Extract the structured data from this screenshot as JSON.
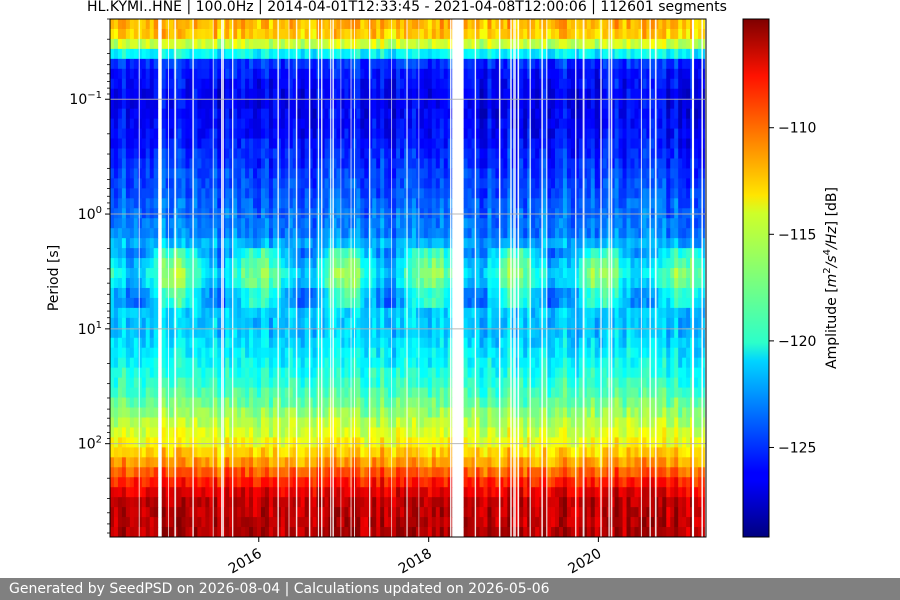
{
  "chart_data": {
    "type": "heatmap",
    "title": "HL.KYMI..HNE | 100.0Hz | 2014-04-01T12:33:45 - 2021-04-08T12:00:06 | 112601 segments",
    "xlabel": "",
    "ylabel": "Period [s]",
    "x_range": [
      "2014-04-01",
      "2021-04-08"
    ],
    "x_ticks": [
      {
        "value": "2016-01-01",
        "label": "2016"
      },
      {
        "value": "2018-01-01",
        "label": "2018"
      },
      {
        "value": "2020-01-01",
        "label": "2020"
      }
    ],
    "y_scale": "log",
    "y_inverted": true,
    "y_range": [
      0.02,
      650
    ],
    "y_ticks": [
      {
        "value": 0.1,
        "base": "10",
        "exp": "−1"
      },
      {
        "value": 1,
        "base": "10",
        "exp": "0"
      },
      {
        "value": 10,
        "base": "10",
        "exp": "1"
      },
      {
        "value": 100,
        "base": "10",
        "exp": "2"
      }
    ],
    "grid": true,
    "colormap": "jet",
    "colorbar": {
      "label_prefix": "Amplitude [",
      "label_math": "m",
      "label_sup1": "2",
      "label_mid": "/s",
      "label_sup2": "4",
      "label_end": "/Hz",
      "label_suffix": "] [dB]",
      "range": [
        -129.2,
        -104.9
      ],
      "ticks": [
        -110,
        -115,
        -120,
        -125
      ]
    },
    "data_gaps": [
      [
        "2014-10-25",
        "2014-11-08"
      ],
      [
        "2018-04-20",
        "2018-05-20"
      ]
    ],
    "profile_period_s": [
      0.02,
      0.03,
      0.05,
      0.1,
      0.2,
      0.5,
      1.5,
      2.5,
      3.5,
      5,
      10,
      20,
      40,
      60,
      100,
      150,
      200,
      300,
      650
    ],
    "profile_amplitude_db": [
      -112,
      -113,
      -125.5,
      -126.5,
      -126,
      -124.5,
      -123,
      -120,
      -118.5,
      -121,
      -121.5,
      -120,
      -118,
      -116,
      -114,
      -111.5,
      -109,
      -106.5,
      -106
    ]
  },
  "footer": {
    "text": "Generated by SeedPSD on 2026-08-04 | Calculations updated on 2026-05-06"
  }
}
